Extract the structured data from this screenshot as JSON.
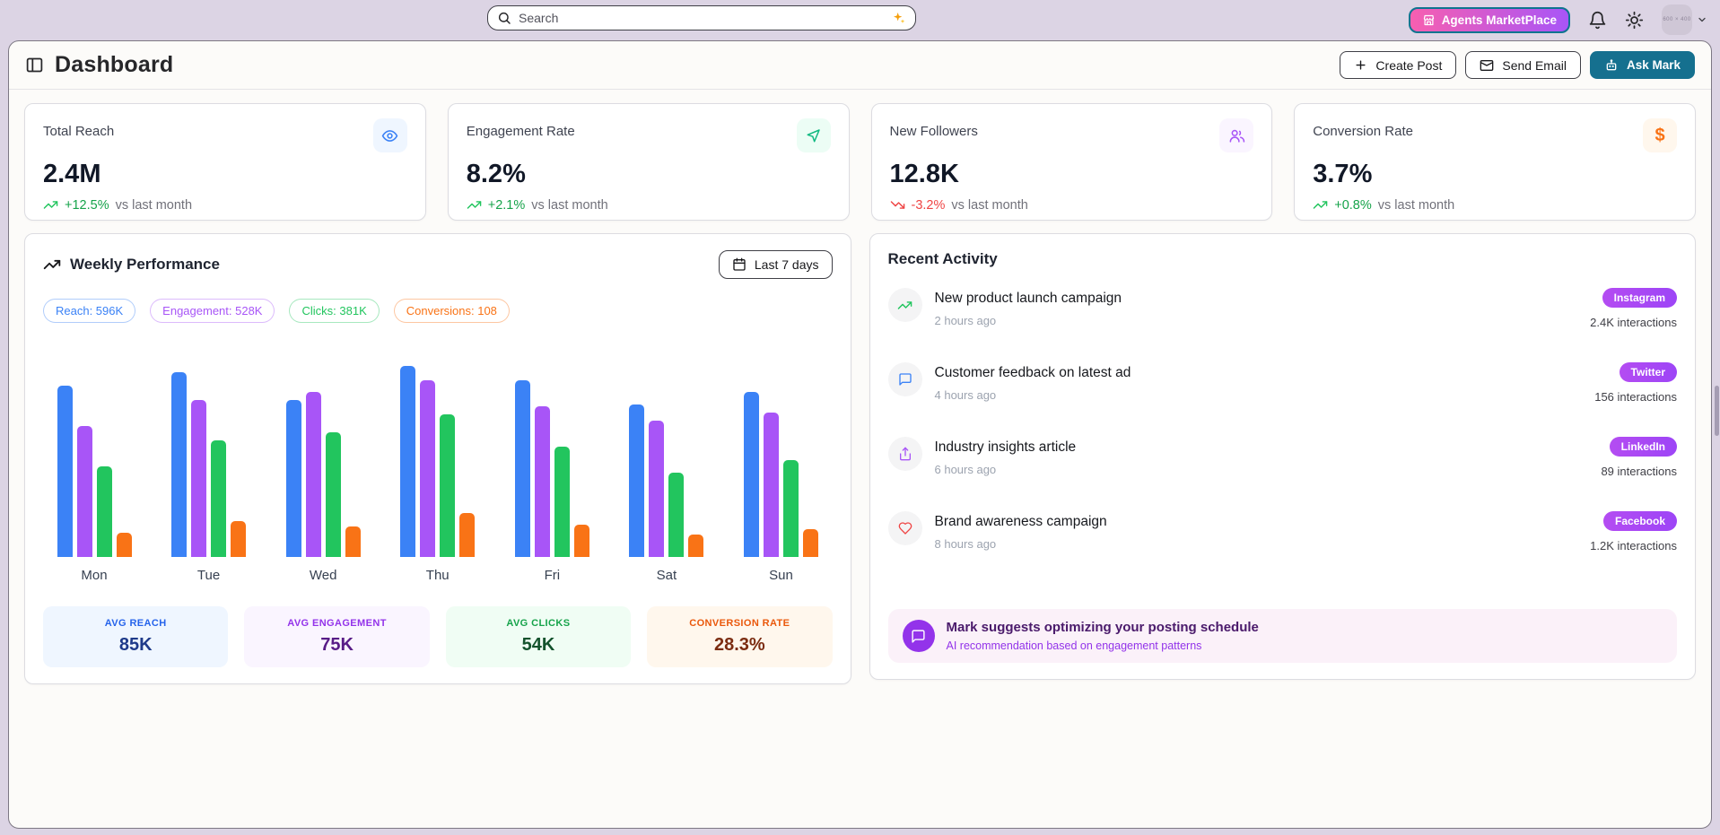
{
  "colors": {
    "positive": "#16a34a",
    "negative": "#ef4444",
    "platform_pill": "#a855f7"
  },
  "topbar": {
    "search": {
      "placeholder": "Search"
    },
    "marketplace_button": "Agents MarketPlace",
    "avatar_text": "600 × 400"
  },
  "header": {
    "title": "Dashboard",
    "buttons": {
      "create_post": "Create Post",
      "send_email": "Send Email",
      "ask_mark": "Ask Mark"
    }
  },
  "stats": [
    {
      "title": "Total Reach",
      "value": "2.4M",
      "change": "+12.5%",
      "change_dir": "up",
      "suffix": "vs last month",
      "icon": "eye",
      "icon_color": "#3b82f6",
      "icon_bg": "#eff6ff"
    },
    {
      "title": "Engagement Rate",
      "value": "8.2%",
      "change": "+2.1%",
      "change_dir": "up",
      "suffix": "vs last month",
      "icon": "mouse-pointer",
      "icon_color": "#10b981",
      "icon_bg": "#ecfdf5"
    },
    {
      "title": "New Followers",
      "value": "12.8K",
      "change": "-3.2%",
      "change_dir": "down",
      "suffix": "vs last month",
      "icon": "users",
      "icon_color": "#a855f7",
      "icon_bg": "#faf5ff"
    },
    {
      "title": "Conversion Rate",
      "value": "3.7%",
      "change": "+0.8%",
      "change_dir": "up",
      "suffix": "vs last month",
      "icon": "dollar",
      "icon_color": "#f97316",
      "icon_bg": "#fff7ed"
    }
  ],
  "chart": {
    "title": "Weekly Performance",
    "range_button": "Last 7 days",
    "legend": [
      {
        "label": "Reach: 596K",
        "color": "#3b82f6"
      },
      {
        "label": "Engagement: 528K",
        "color": "#a855f7"
      },
      {
        "label": "Clicks: 381K",
        "color": "#22c55e"
      },
      {
        "label": "Conversions: 108",
        "color": "#f97316"
      }
    ],
    "summary": [
      {
        "label": "AVG REACH",
        "value": "85K",
        "bg": "#eff6ff",
        "label_color": "#2563eb",
        "value_color": "#1e3a8a"
      },
      {
        "label": "AVG ENGAGEMENT",
        "value": "75K",
        "bg": "#faf5ff",
        "label_color": "#9333ea",
        "value_color": "#581c87"
      },
      {
        "label": "AVG CLICKS",
        "value": "54K",
        "bg": "#f0fdf4",
        "label_color": "#16a34a",
        "value_color": "#14532d"
      },
      {
        "label": "CONVERSION RATE",
        "value": "28.3%",
        "bg": "#fff7ed",
        "label_color": "#ea580c",
        "value_color": "#7c2d12"
      }
    ]
  },
  "chart_data": {
    "type": "bar",
    "title": "Weekly Performance",
    "categories": [
      "Mon",
      "Tue",
      "Wed",
      "Thu",
      "Fri",
      "Sat",
      "Sun"
    ],
    "series": [
      {
        "name": "Reach",
        "color": "#3b82f6",
        "values": [
          85,
          92,
          78,
          95,
          88,
          76,
          82
        ],
        "total": "596K"
      },
      {
        "name": "Engagement",
        "color": "#a855f7",
        "values": [
          65,
          78,
          82,
          88,
          75,
          68,
          72
        ],
        "total": "528K"
      },
      {
        "name": "Clicks",
        "color": "#22c55e",
        "values": [
          45,
          58,
          62,
          71,
          55,
          42,
          48
        ],
        "total": "381K"
      },
      {
        "name": "Conversions",
        "color": "#f97316",
        "values": [
          12,
          18,
          15,
          22,
          16,
          11,
          14
        ],
        "total": "108"
      }
    ],
    "ylim": [
      0,
      95
    ],
    "grid": false,
    "legend_position": "top"
  },
  "activity": {
    "title": "Recent Activity",
    "items": [
      {
        "title": "New product launch campaign",
        "time": "2 hours ago",
        "platform": "Instagram",
        "interactions": "2.4K interactions",
        "icon": "trending-up",
        "icon_color": "#22c55e"
      },
      {
        "title": "Customer feedback on latest ad",
        "time": "4 hours ago",
        "platform": "Twitter",
        "interactions": "156 interactions",
        "icon": "message",
        "icon_color": "#3b82f6"
      },
      {
        "title": "Industry insights article",
        "time": "6 hours ago",
        "platform": "LinkedIn",
        "interactions": "89 interactions",
        "icon": "share",
        "icon_color": "#a855f7"
      },
      {
        "title": "Brand awareness campaign",
        "time": "8 hours ago",
        "platform": "Facebook",
        "interactions": "1.2K interactions",
        "icon": "heart",
        "icon_color": "#ef4444"
      }
    ],
    "suggestion": {
      "title": "Mark suggests optimizing your posting schedule",
      "subtitle": "AI recommendation based on engagement patterns"
    }
  }
}
